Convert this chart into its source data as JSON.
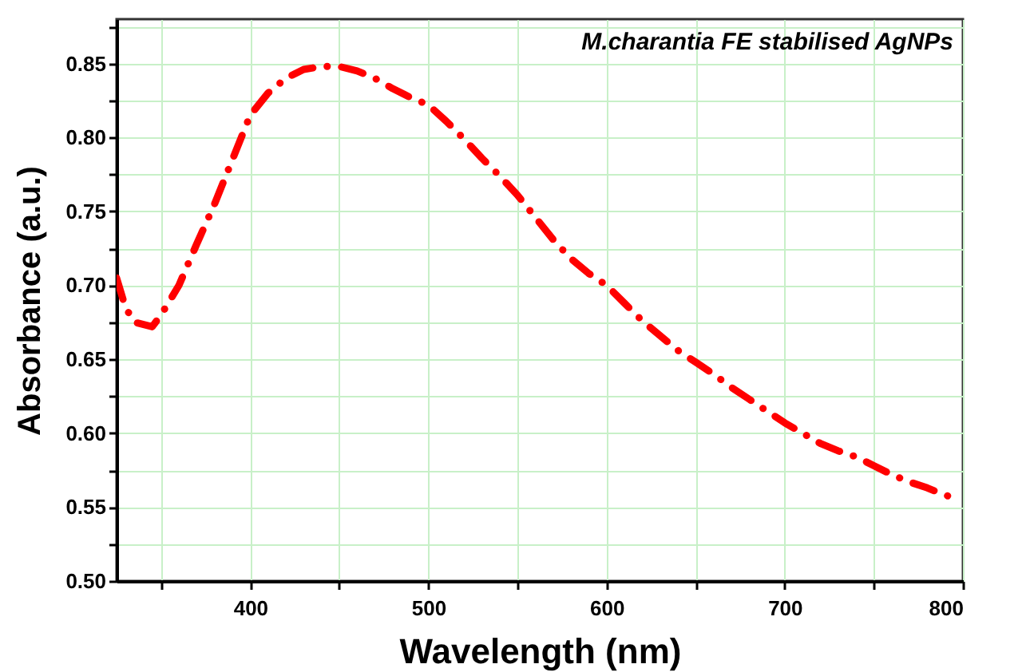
{
  "chart_data": {
    "type": "line",
    "annotations": [
      "M.charantia FE  stabilised AgNPs"
    ],
    "xlabel": "Wavelength (nm)",
    "ylabel": "Absorbance (a.u.)",
    "x": [
      325,
      330,
      335,
      345,
      350,
      360,
      370,
      380,
      390,
      400,
      410,
      420,
      430,
      440,
      450,
      460,
      470,
      480,
      490,
      500,
      510,
      520,
      530,
      540,
      550,
      560,
      570,
      580,
      590,
      600,
      610,
      620,
      630,
      640,
      650,
      660,
      670,
      680,
      690,
      700,
      710,
      720,
      730,
      740,
      750,
      760,
      770,
      780,
      790,
      797
    ],
    "series": [
      {
        "color": "#ff0000",
        "values": [
          0.705,
          0.685,
          0.675,
          0.672,
          0.68,
          0.7,
          0.728,
          0.755,
          0.785,
          0.815,
          0.83,
          0.84,
          0.846,
          0.848,
          0.848,
          0.845,
          0.84,
          0.833,
          0.827,
          0.822,
          0.811,
          0.799,
          0.786,
          0.774,
          0.761,
          0.746,
          0.731,
          0.718,
          0.708,
          0.7,
          0.688,
          0.676,
          0.666,
          0.656,
          0.648,
          0.64,
          0.631,
          0.623,
          0.615,
          0.607,
          0.6,
          0.593,
          0.588,
          0.584,
          0.578,
          0.572,
          0.567,
          0.563,
          0.558,
          0.556
        ]
      }
    ],
    "xlim": [
      325,
      800
    ],
    "xticks": [
      {
        "value": 350,
        "label": null
      },
      400,
      {
        "value": 450,
        "label": null
      },
      500,
      {
        "value": 550,
        "label": null
      },
      600,
      {
        "value": 650,
        "label": null
      },
      700,
      {
        "value": 750,
        "label": null
      },
      800
    ],
    "ylim": [
      0.5,
      0.88
    ],
    "yticks": [
      {
        "value": 0.5,
        "label": "0.50"
      },
      {
        "value": 0.525,
        "label": null
      },
      0.55,
      {
        "value": 0.575,
        "label": null
      },
      {
        "value": 0.6,
        "label": "0.60"
      },
      {
        "value": 0.625,
        "label": null
      },
      0.65,
      {
        "value": 0.675,
        "label": null
      },
      {
        "value": 0.7,
        "label": "0.70"
      },
      {
        "value": 0.725,
        "label": null
      },
      0.75,
      {
        "value": 0.775,
        "label": null
      },
      {
        "value": 0.8,
        "label": "0.80"
      },
      {
        "value": 0.825,
        "label": null
      },
      0.85,
      {
        "value": 0.875,
        "label": null
      }
    ],
    "grid": true,
    "line_style": "dashed",
    "marker": "none"
  }
}
